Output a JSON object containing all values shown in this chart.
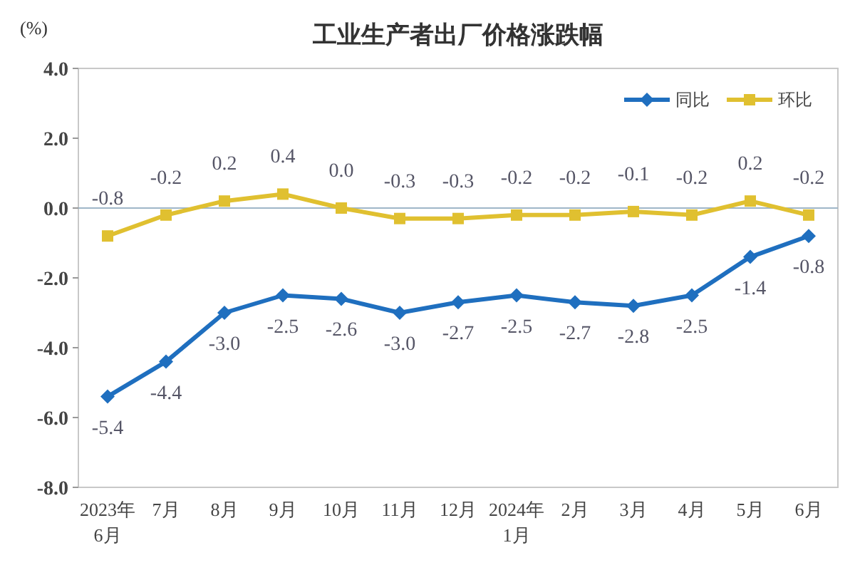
{
  "chart_data": {
    "type": "line",
    "title": "工业生产者出厂价格涨跌幅",
    "ylabel": "(%)",
    "categories": [
      "2023年\n6月",
      "7月",
      "8月",
      "9月",
      "10月",
      "11月",
      "12月",
      "2024年\n1月",
      "2月",
      "3月",
      "4月",
      "5月",
      "6月"
    ],
    "series": [
      {
        "name": "同比",
        "color": "#1f6fbf",
        "marker": "diamond",
        "values": [
          -5.4,
          -4.4,
          -3.0,
          -2.5,
          -2.6,
          -3.0,
          -2.7,
          -2.5,
          -2.7,
          -2.8,
          -2.5,
          -1.4,
          -0.8
        ],
        "value_labels": [
          "-5.4",
          "-4.4",
          "-3.0",
          "-2.5",
          "-2.6",
          "-3.0",
          "-2.7",
          "-2.5",
          "-2.7",
          "-2.8",
          "-2.5",
          "-1.4",
          "-0.8"
        ]
      },
      {
        "name": "环比",
        "color": "#e0c030",
        "marker": "square",
        "values": [
          -0.8,
          -0.2,
          0.2,
          0.4,
          0.0,
          -0.3,
          -0.3,
          -0.2,
          -0.2,
          -0.1,
          -0.2,
          0.2,
          -0.2
        ],
        "value_labels": [
          "-0.8",
          "-0.2",
          "0.2",
          "0.4",
          "0.0",
          "-0.3",
          "-0.3",
          "-0.2",
          "-0.2",
          "-0.1",
          "-0.2",
          "0.2",
          "-0.2"
        ]
      }
    ],
    "ylim": [
      -8,
      4
    ],
    "yticks": [
      {
        "value": -8,
        "label": "-8.0"
      },
      {
        "value": -6,
        "label": "-6.0"
      },
      {
        "value": -4,
        "label": "-4.0"
      },
      {
        "value": -2,
        "label": "-2.0"
      },
      {
        "value": 0,
        "label": "0.0"
      },
      {
        "value": 2,
        "label": "2.0"
      },
      {
        "value": 4,
        "label": "4.0"
      }
    ],
    "ref_lines": [
      {
        "axis": "y",
        "value": 0,
        "color": "#9fb6c8"
      }
    ],
    "legend": "top right"
  }
}
